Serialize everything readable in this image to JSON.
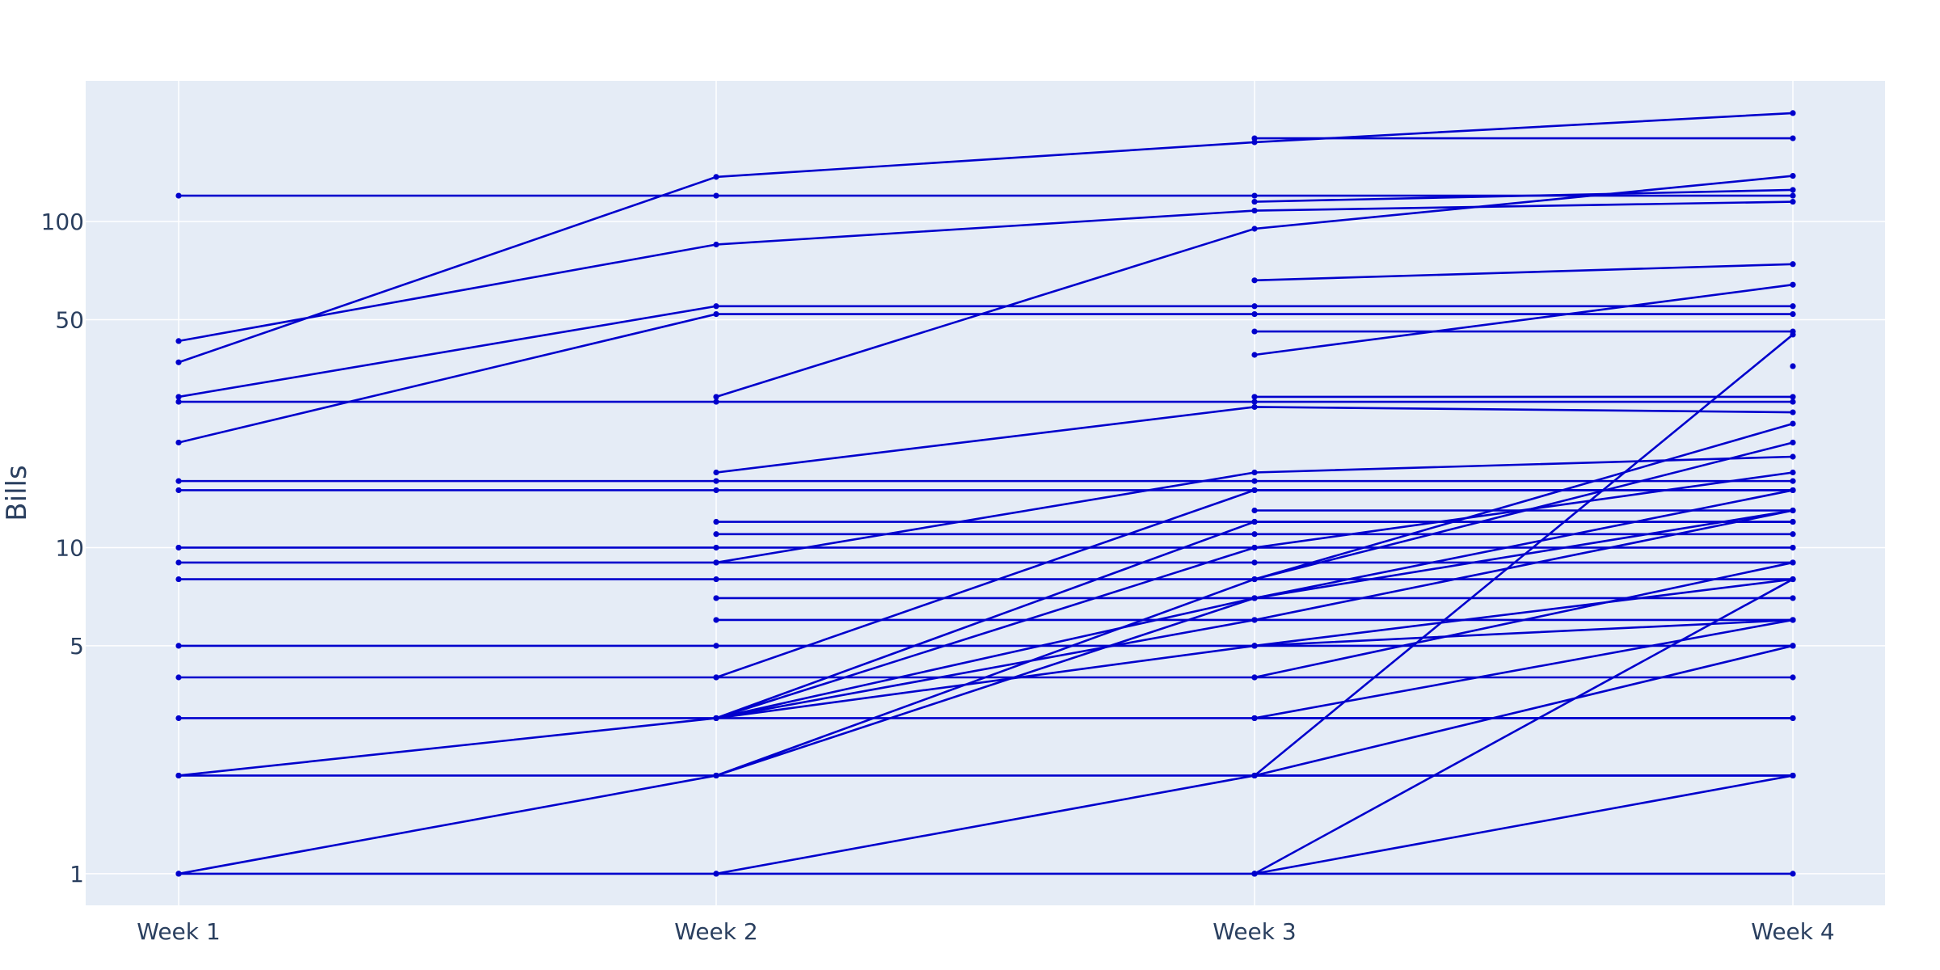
{
  "chart_data": {
    "type": "line",
    "title": "",
    "xlabel": "",
    "ylabel": "Bills",
    "categories": [
      "Week 1",
      "Week 2",
      "Week 3",
      "Week 4"
    ],
    "y_scale": "log",
    "ylim": [
      0.8,
      270
    ],
    "y_ticks": [
      1,
      5,
      10,
      50,
      100
    ],
    "grid": true,
    "legend": "none",
    "colors": {
      "line": "#0000cc",
      "plot_bg": "#e5ecf6",
      "grid": "#ffffff",
      "text": "#2a3f5f"
    },
    "series": [
      {
        "values": [
          120,
          120,
          120,
          120
        ]
      },
      {
        "values": [
          37,
          137,
          175,
          215
        ]
      },
      {
        "values": [
          43,
          85,
          108,
          115
        ]
      },
      {
        "values": [
          28,
          28,
          28,
          28
        ]
      },
      {
        "values": [
          29,
          55,
          55,
          55
        ]
      },
      {
        "values": [
          21,
          52,
          52,
          52
        ]
      },
      {
        "values": [
          16,
          16,
          16,
          16
        ]
      },
      {
        "values": [
          15,
          15,
          15,
          15
        ]
      },
      {
        "values": [
          10,
          10,
          10,
          10
        ]
      },
      {
        "values": [
          9,
          9,
          9,
          9
        ]
      },
      {
        "values": [
          8,
          8,
          8,
          8
        ]
      },
      {
        "values": [
          5,
          5,
          5,
          5
        ]
      },
      {
        "values": [
          4,
          4,
          4,
          4
        ]
      },
      {
        "values": [
          3,
          3,
          3,
          3
        ]
      },
      {
        "values": [
          2,
          2,
          2,
          2
        ]
      },
      {
        "values": [
          2,
          3,
          6,
          13
        ]
      },
      {
        "values": [
          1,
          2,
          7,
          15
        ]
      },
      {
        "values": [
          1,
          1,
          1,
          1
        ]
      },
      {
        "values": [
          null,
          29,
          95,
          138
        ]
      },
      {
        "values": [
          null,
          17,
          27,
          26
        ]
      },
      {
        "values": [
          null,
          12,
          12,
          12
        ]
      },
      {
        "values": [
          null,
          11,
          11,
          11
        ]
      },
      {
        "values": [
          null,
          9,
          17,
          19
        ]
      },
      {
        "values": [
          null,
          7,
          7,
          7
        ]
      },
      {
        "values": [
          null,
          6,
          6,
          6
        ]
      },
      {
        "values": [
          null,
          4,
          15,
          15
        ]
      },
      {
        "values": [
          null,
          3,
          10,
          17
        ]
      },
      {
        "values": [
          null,
          3,
          12,
          12
        ]
      },
      {
        "values": [
          null,
          3,
          5,
          6
        ]
      },
      {
        "values": [
          null,
          3,
          7,
          13
        ]
      },
      {
        "values": [
          null,
          2,
          8,
          24
        ]
      },
      {
        "values": [
          null,
          1,
          2,
          5
        ]
      },
      {
        "values": [
          null,
          null,
          180,
          180
        ]
      },
      {
        "values": [
          null,
          null,
          115,
          125
        ]
      },
      {
        "values": [
          null,
          null,
          66,
          74
        ]
      },
      {
        "values": [
          null,
          null,
          46,
          46
        ]
      },
      {
        "values": [
          null,
          null,
          39,
          64
        ]
      },
      {
        "values": [
          null,
          null,
          29,
          29
        ]
      },
      {
        "values": [
          null,
          null,
          13,
          13
        ]
      },
      {
        "values": [
          null,
          null,
          8,
          21
        ]
      },
      {
        "values": [
          null,
          null,
          5,
          8
        ]
      },
      {
        "values": [
          null,
          null,
          4,
          9
        ]
      },
      {
        "values": [
          null,
          null,
          3,
          6
        ]
      },
      {
        "values": [
          null,
          null,
          3,
          3
        ]
      },
      {
        "values": [
          null,
          null,
          2,
          45
        ]
      },
      {
        "values": [
          null,
          null,
          2,
          2
        ]
      },
      {
        "values": [
          null,
          null,
          1,
          8
        ]
      },
      {
        "values": [
          null,
          null,
          1,
          2
        ]
      },
      {
        "values": [
          null,
          null,
          null,
          36
        ]
      }
    ]
  }
}
